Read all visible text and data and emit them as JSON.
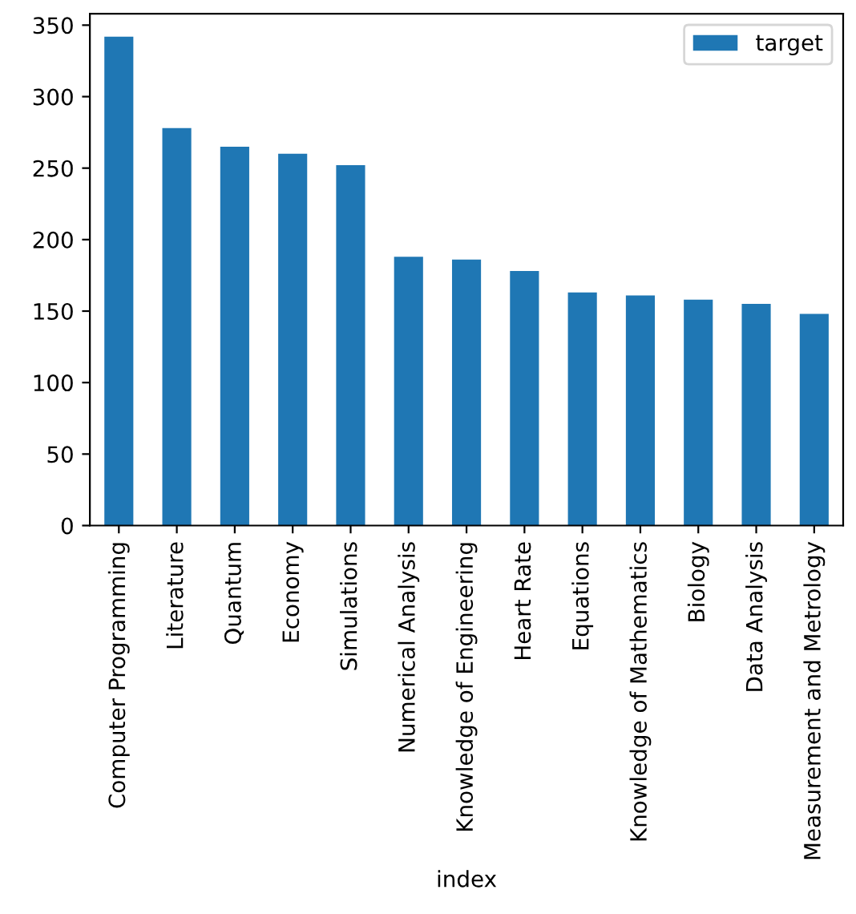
{
  "chart_data": {
    "type": "bar",
    "xlabel": "index",
    "categories": [
      "Computer Programming",
      "Literature",
      "Quantum",
      "Economy",
      "Simulations",
      "Numerical Analysis",
      "Knowledge of Engineering",
      "Heart Rate",
      "Equations",
      "Knowledge of Mathematics",
      "Biology",
      "Data Analysis",
      "Measurement and Metrology"
    ],
    "series": [
      {
        "name": "target",
        "color": "#1f77b4",
        "values": [
          342,
          278,
          265,
          260,
          252,
          188,
          186,
          178,
          163,
          161,
          158,
          155,
          148
        ]
      }
    ],
    "ylim": [
      0,
      358
    ],
    "yticks": [
      0,
      50,
      100,
      150,
      200,
      250,
      300,
      350
    ],
    "grid": false,
    "legend": "top right"
  }
}
